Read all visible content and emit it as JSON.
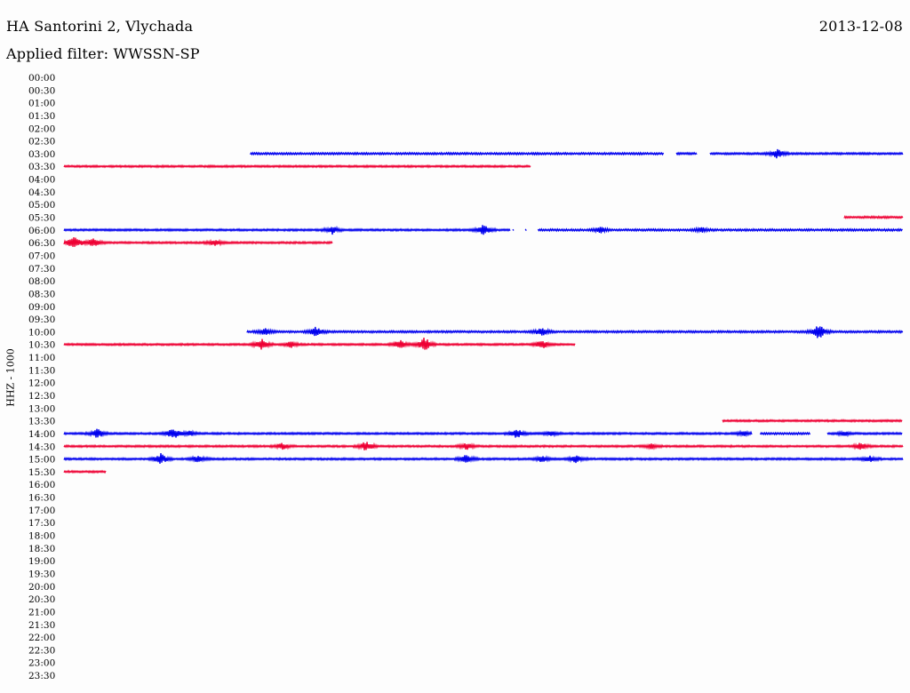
{
  "header": {
    "title": "HA Santorini 2, Vlychada",
    "date": "2013-12-08",
    "filter_label": "Applied filter:",
    "filter_value": "WWSSN-SP"
  },
  "colors": {
    "blue": "#0000ee",
    "red": "#ee0033"
  },
  "chart_data": {
    "type": "line",
    "title": "HA Santorini 2, Vlychada",
    "ylabel": "HHZ - 1000",
    "x_unit": "fraction of 30-minute row",
    "tick_labels": [
      "00:00",
      "00:30",
      "01:00",
      "01:30",
      "02:00",
      "02:30",
      "03:00",
      "03:30",
      "04:00",
      "04:30",
      "05:00",
      "05:30",
      "06:00",
      "06:30",
      "07:00",
      "07:30",
      "08:00",
      "08:30",
      "09:00",
      "09:30",
      "10:00",
      "10:30",
      "11:00",
      "11:30",
      "12:00",
      "12:30",
      "13:00",
      "13:30",
      "14:00",
      "14:30",
      "15:00",
      "15:30",
      "16:00",
      "16:30",
      "17:00",
      "17:30",
      "18:00",
      "18:30",
      "19:00",
      "19:30",
      "20:00",
      "20:30",
      "21:00",
      "21:30",
      "22:00",
      "22:30",
      "23:00",
      "23:30"
    ],
    "series": [
      {
        "row": "03:00",
        "color": "blue",
        "segments": [
          [
            0.222,
            0.715
          ],
          [
            0.73,
            0.755
          ],
          [
            0.77,
            1.0
          ]
        ],
        "events": [
          [
            0.85,
            0.6
          ]
        ]
      },
      {
        "row": "03:30",
        "color": "red",
        "segments": [
          [
            0.0,
            0.557
          ]
        ],
        "events": []
      },
      {
        "row": "05:30",
        "color": "red",
        "segments": [
          [
            0.93,
            1.0
          ]
        ],
        "events": []
      },
      {
        "row": "06:00",
        "color": "blue",
        "segments": [
          [
            0.0,
            0.532
          ],
          [
            0.535,
            0.537
          ],
          [
            0.55,
            0.552
          ],
          [
            0.565,
            1.0
          ]
        ],
        "events": [
          [
            0.32,
            0.5
          ],
          [
            0.5,
            0.7
          ],
          [
            0.64,
            0.4
          ],
          [
            0.76,
            0.3
          ]
        ]
      },
      {
        "row": "06:30",
        "color": "red",
        "segments": [
          [
            0.0,
            0.32
          ]
        ],
        "events": [
          [
            0.012,
            1.0
          ],
          [
            0.035,
            0.5
          ],
          [
            0.18,
            0.4
          ]
        ]
      },
      {
        "row": "10:00",
        "color": "blue",
        "segments": [
          [
            0.218,
            1.0
          ]
        ],
        "events": [
          [
            0.24,
            0.4
          ],
          [
            0.3,
            0.7
          ],
          [
            0.57,
            0.6
          ],
          [
            0.9,
            1.0
          ]
        ]
      },
      {
        "row": "10:30",
        "color": "red",
        "segments": [
          [
            0.0,
            0.61
          ]
        ],
        "events": [
          [
            0.235,
            0.8
          ],
          [
            0.27,
            0.4
          ],
          [
            0.4,
            0.6
          ],
          [
            0.43,
            1.0
          ],
          [
            0.57,
            0.6
          ]
        ]
      },
      {
        "row": "13:30",
        "color": "red",
        "segments": [
          [
            0.785,
            1.0
          ]
        ],
        "events": []
      },
      {
        "row": "14:00",
        "color": "blue",
        "segments": [
          [
            0.0,
            0.82
          ],
          [
            0.83,
            0.89
          ],
          [
            0.91,
            1.0
          ]
        ],
        "events": [
          [
            0.04,
            0.6
          ],
          [
            0.13,
            0.8
          ],
          [
            0.15,
            0.3
          ],
          [
            0.54,
            0.6
          ],
          [
            0.58,
            0.3
          ],
          [
            0.81,
            0.3
          ],
          [
            0.93,
            0.3
          ]
        ]
      },
      {
        "row": "14:30",
        "color": "red",
        "segments": [
          [
            0.0,
            1.0
          ]
        ],
        "events": [
          [
            0.26,
            0.4
          ],
          [
            0.36,
            0.7
          ],
          [
            0.48,
            0.4
          ],
          [
            0.7,
            0.3
          ],
          [
            0.95,
            0.5
          ]
        ]
      },
      {
        "row": "15:00",
        "color": "blue",
        "segments": [
          [
            0.0,
            1.0
          ]
        ],
        "events": [
          [
            0.115,
            0.8
          ],
          [
            0.16,
            0.5
          ],
          [
            0.48,
            0.6
          ],
          [
            0.57,
            0.4
          ],
          [
            0.61,
            0.5
          ],
          [
            0.96,
            0.4
          ]
        ]
      },
      {
        "row": "15:30",
        "color": "red",
        "segments": [
          [
            0.0,
            0.05
          ]
        ],
        "events": []
      }
    ]
  }
}
